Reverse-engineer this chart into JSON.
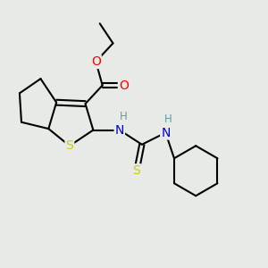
{
  "background_color": "#e8eae8",
  "atom_colors": {
    "C": "#000000",
    "H": "#5f9ea0",
    "N": "#0000cd",
    "O": "#ff0000",
    "S": "#cccc00"
  },
  "bond_color": "#000000",
  "bond_width": 1.5,
  "figsize": [
    3.0,
    3.0
  ],
  "dpi": 100
}
